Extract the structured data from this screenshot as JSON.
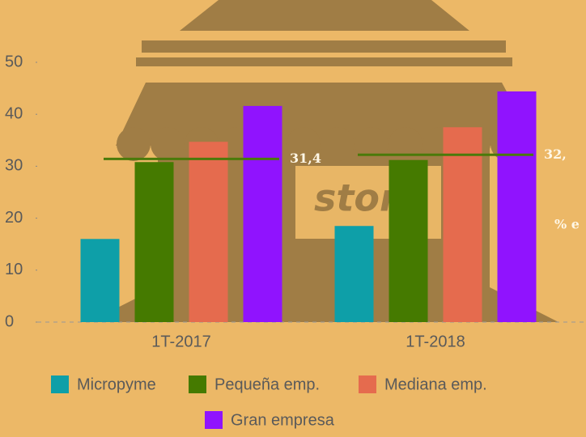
{
  "chart_data": {
    "type": "bar",
    "categories": [
      "1T-2017",
      "1T-2018"
    ],
    "series": [
      {
        "name": "Micropyme",
        "color": "#0e9fa8",
        "values": [
          16.0,
          18.5
        ]
      },
      {
        "name": "Pequeña emp.",
        "color": "#457a00",
        "values": [
          30.8,
          31.2
        ]
      },
      {
        "name": "Mediana emp.",
        "color": "#e56b4e",
        "values": [
          34.7,
          37.5
        ]
      },
      {
        "name": "Gran empresa",
        "color": "#9013fe",
        "values": [
          41.6,
          44.4
        ]
      }
    ],
    "reference_lines": {
      "color": "#4a7a0a",
      "values": [
        31.4,
        32.2
      ],
      "value_labels": [
        "31,4",
        "32,"
      ]
    },
    "annotation": "% e",
    "background_text": "store",
    "ylim": [
      0,
      50
    ],
    "yticks": [
      0,
      10,
      20,
      30,
      40,
      50
    ],
    "legend": "bottom"
  }
}
